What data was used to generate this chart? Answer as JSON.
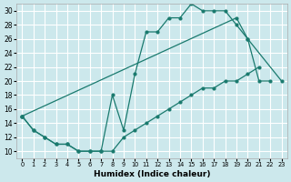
{
  "xlabel": "Humidex (Indice chaleur)",
  "bg_color": "#cce8ec",
  "grid_color": "#ffffff",
  "line_color": "#1a7a6e",
  "xlim": [
    -0.5,
    23.5
  ],
  "ylim": [
    9,
    31
  ],
  "xticks": [
    0,
    1,
    2,
    3,
    4,
    5,
    6,
    7,
    8,
    9,
    10,
    11,
    12,
    13,
    14,
    15,
    16,
    17,
    18,
    19,
    20,
    21,
    22,
    23
  ],
  "yticks": [
    10,
    12,
    14,
    16,
    18,
    20,
    22,
    24,
    26,
    28,
    30
  ],
  "line1_x": [
    0,
    1,
    2,
    3,
    4,
    5,
    6,
    7,
    8,
    9,
    10,
    11,
    12,
    13,
    14,
    15,
    16,
    17,
    18,
    19,
    20,
    21,
    22
  ],
  "line1_y": [
    15,
    13,
    12,
    11,
    11,
    10,
    10,
    10,
    18,
    13,
    21,
    27,
    27,
    29,
    29,
    31,
    30,
    30,
    30,
    28,
    26,
    20,
    20
  ],
  "line2_x": [
    0,
    1,
    2,
    3,
    4,
    5,
    6,
    7,
    8,
    9,
    10,
    11,
    12,
    13,
    14,
    15,
    16,
    17,
    18,
    19,
    20,
    21
  ],
  "line2_y": [
    15,
    13,
    12,
    11,
    11,
    10,
    10,
    10,
    10,
    12,
    13,
    14,
    15,
    16,
    17,
    18,
    19,
    19,
    20,
    20,
    21,
    22
  ],
  "line3_x": [
    0,
    19,
    20,
    23
  ],
  "line3_y": [
    15,
    29,
    26,
    20
  ]
}
